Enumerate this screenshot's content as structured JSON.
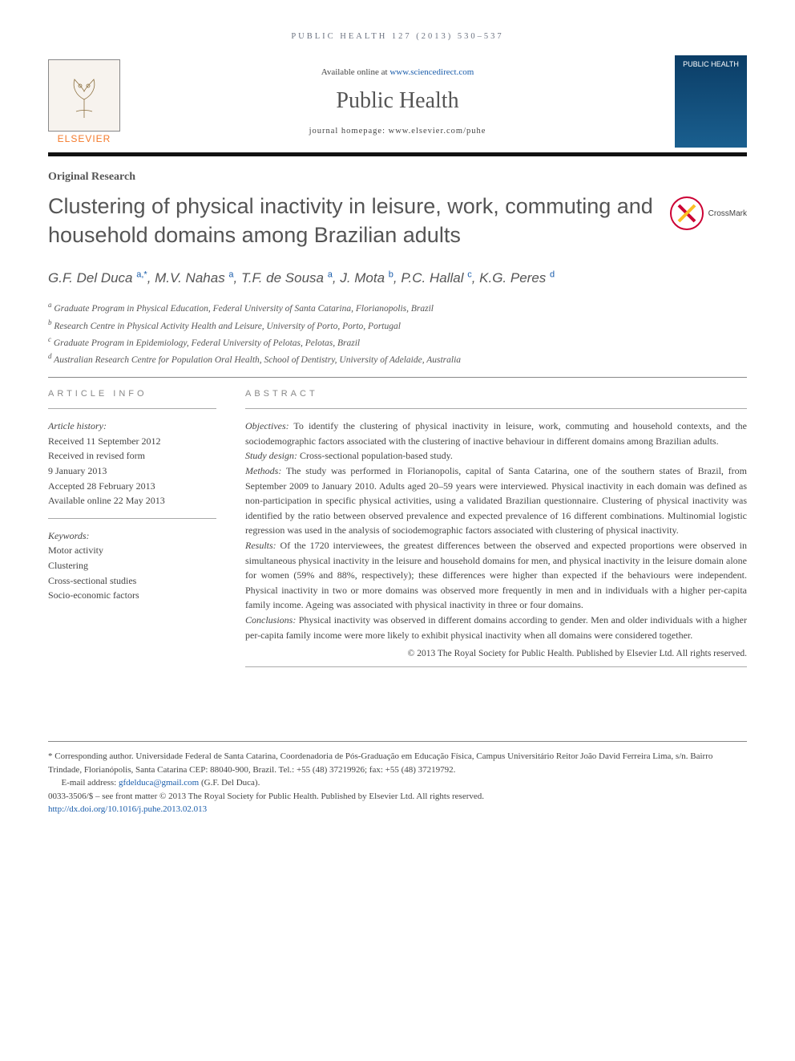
{
  "header_meta": "PUBLIC HEALTH 127 (2013) 530–537",
  "top": {
    "available_prefix": "Available online at ",
    "available_link": "www.sciencedirect.com",
    "journal_name": "Public Health",
    "homepage_line": "journal homepage: www.elsevier.com/puhe",
    "publisher": "ELSEVIER",
    "cover_label": "PUBLIC HEALTH"
  },
  "article_type": "Original Research",
  "title": "Clustering of physical inactivity in leisure, work, commuting and household domains among Brazilian adults",
  "crossmark_label": "CrossMark",
  "authors_html": "G.F. Del Duca <sup>a,*</sup>, M.V. Nahas <sup>a</sup>, T.F. de Sousa <sup>a</sup>, J. Mota <sup>b</sup>, P.C. Hallal <sup>c</sup>, K.G. Peres <sup>d</sup>",
  "affiliations": [
    {
      "sup": "a",
      "text": "Graduate Program in Physical Education, Federal University of Santa Catarina, Florianopolis, Brazil"
    },
    {
      "sup": "b",
      "text": "Research Centre in Physical Activity Health and Leisure, University of Porto, Porto, Portugal"
    },
    {
      "sup": "c",
      "text": "Graduate Program in Epidemiology, Federal University of Pelotas, Pelotas, Brazil"
    },
    {
      "sup": "d",
      "text": "Australian Research Centre for Population Oral Health, School of Dentistry, University of Adelaide, Australia"
    }
  ],
  "article_info": {
    "heading": "ARTICLE INFO",
    "history_label": "Article history:",
    "history": [
      "Received 11 September 2012",
      "Received in revised form",
      "9 January 2013",
      "Accepted 28 February 2013",
      "Available online 22 May 2013"
    ],
    "keywords_label": "Keywords:",
    "keywords": [
      "Motor activity",
      "Clustering",
      "Cross-sectional studies",
      "Socio-economic factors"
    ]
  },
  "abstract": {
    "heading": "ABSTRACT",
    "sections": [
      {
        "label": "Objectives:",
        "text": "To identify the clustering of physical inactivity in leisure, work, commuting and household contexts, and the sociodemographic factors associated with the clustering of inactive behaviour in different domains among Brazilian adults."
      },
      {
        "label": "Study design:",
        "text": "Cross-sectional population-based study."
      },
      {
        "label": "Methods:",
        "text": "The study was performed in Florianopolis, capital of Santa Catarina, one of the southern states of Brazil, from September 2009 to January 2010. Adults aged 20–59 years were interviewed. Physical inactivity in each domain was defined as non-participation in specific physical activities, using a validated Brazilian questionnaire. Clustering of physical inactivity was identified by the ratio between observed prevalence and expected prevalence of 16 different combinations. Multinomial logistic regression was used in the analysis of sociodemographic factors associated with clustering of physical inactivity."
      },
      {
        "label": "Results:",
        "text": "Of the 1720 interviewees, the greatest differences between the observed and expected proportions were observed in simultaneous physical inactivity in the leisure and household domains for men, and physical inactivity in the leisure domain alone for women (59% and 88%, respectively); these differences were higher than expected if the behaviours were independent. Physical inactivity in two or more domains was observed more frequently in men and in individuals with a higher per-capita family income. Ageing was associated with physical inactivity in three or four domains."
      },
      {
        "label": "Conclusions:",
        "text": "Physical inactivity was observed in different domains according to gender. Men and older individuals with a higher per-capita family income were more likely to exhibit physical inactivity when all domains were considered together."
      }
    ],
    "copyright": "© 2013 The Royal Society for Public Health. Published by Elsevier Ltd. All rights reserved."
  },
  "footnotes": {
    "corresponding_label": "* Corresponding author.",
    "corresponding_text": "Universidade Federal de Santa Catarina, Coordenadoria de Pós-Graduação em Educação Física, Campus Universitário Reitor João David Ferreira Lima, s/n. Bairro Trindade, Florianópolis, Santa Catarina CEP: 88040-900, Brazil. Tel.: +55 (48) 37219926; fax: +55 (48) 37219792.",
    "email_label": "E-mail address:",
    "email": "gfdelduca@gmail.com",
    "email_attribution": "(G.F. Del Duca).",
    "issn_line": "0033-3506/$ – see front matter © 2013 The Royal Society for Public Health. Published by Elsevier Ltd. All rights reserved.",
    "doi": "http://dx.doi.org/10.1016/j.puhe.2013.02.013"
  },
  "colors": {
    "link": "#1a5dab",
    "accent_orange": "#f47a2b",
    "text": "#444444",
    "heading_gray": "#888888",
    "border_dark": "#111111"
  }
}
